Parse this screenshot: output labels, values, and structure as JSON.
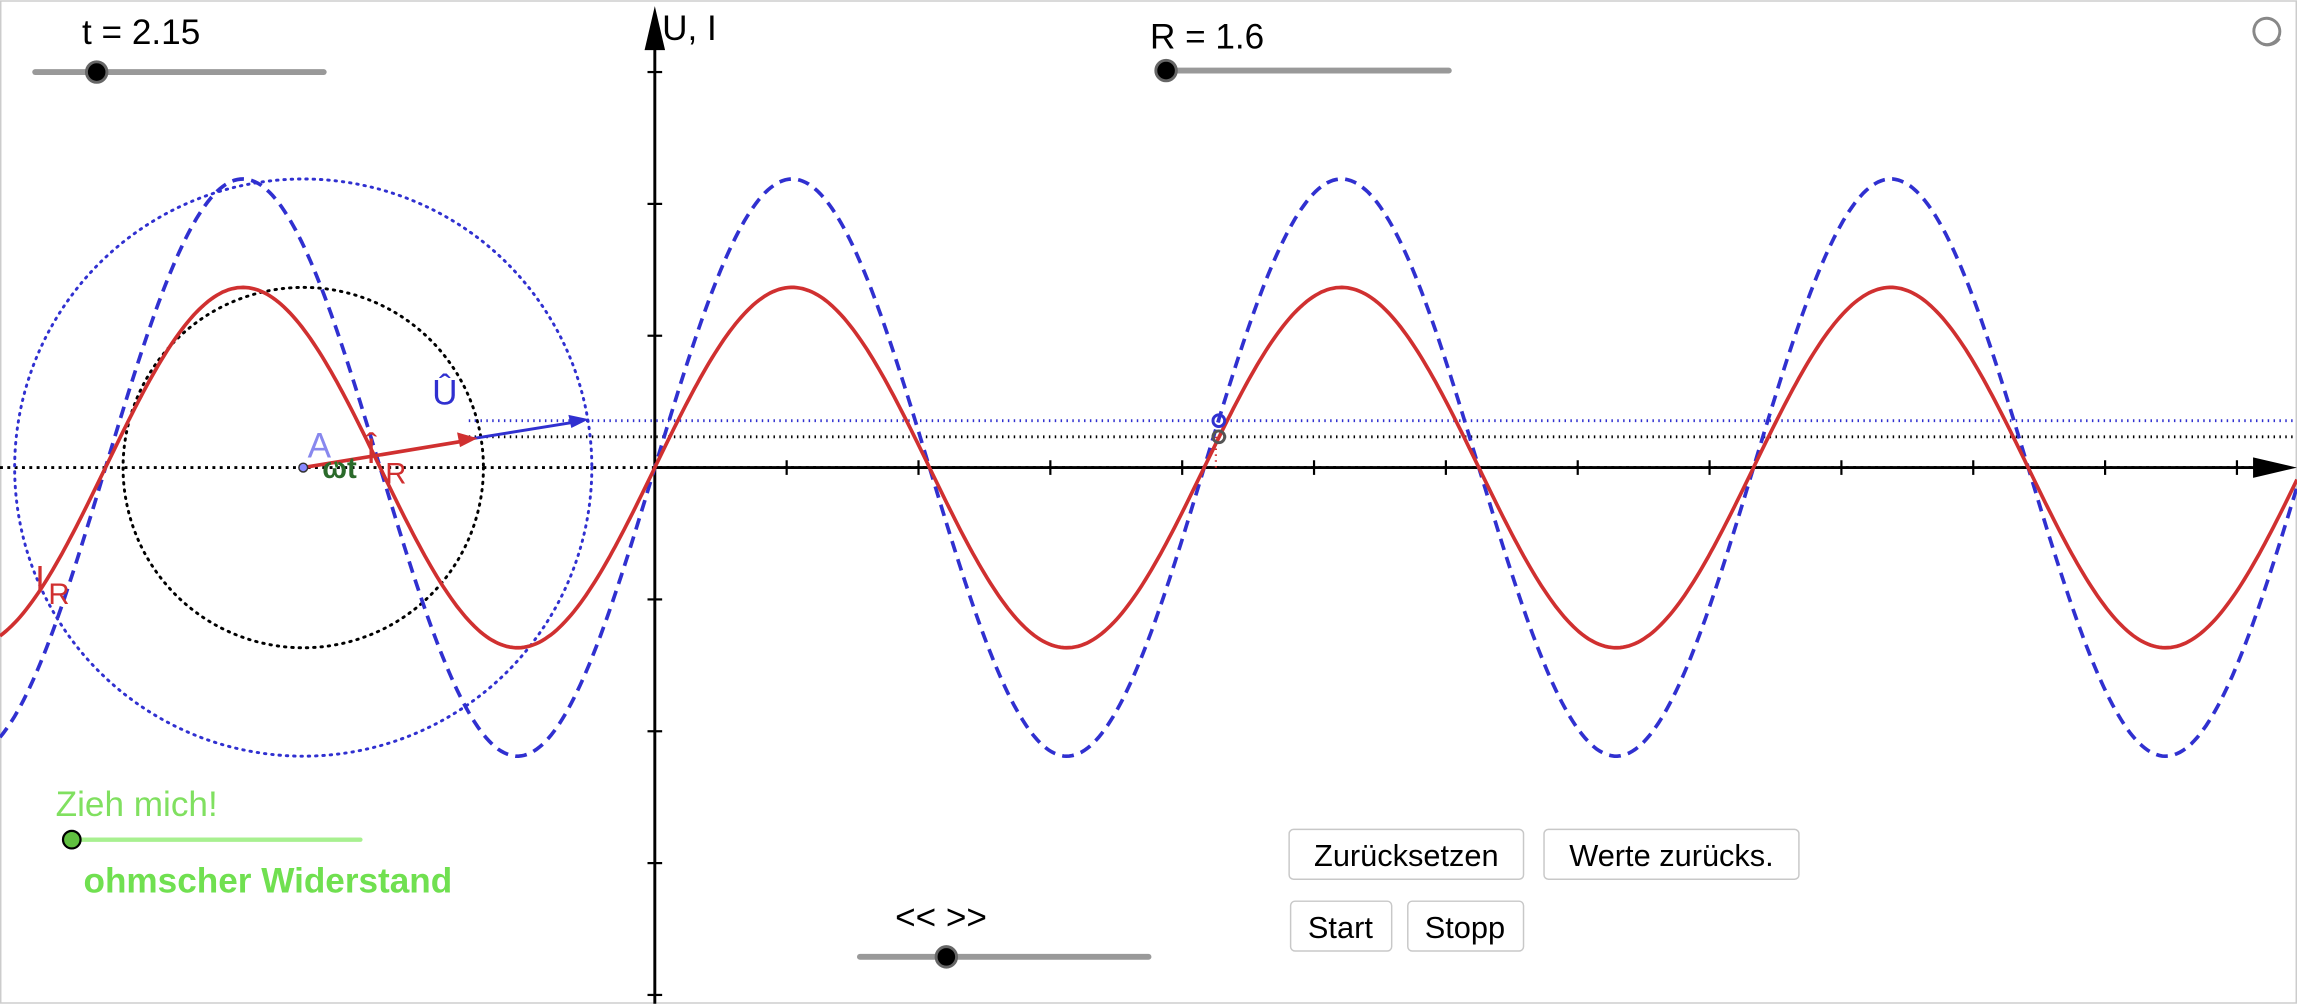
{
  "sliders": [
    {
      "label": "t = 2.15"
    },
    {
      "label": "R = 1.6"
    },
    {
      "label": "Zieh mich!"
    },
    {
      "label": "<< >>"
    }
  ],
  "axis_label": "U, I",
  "labels": {
    "u_hat": "Û",
    "point_a": "A",
    "i_hat": "Î",
    "i_hat_sub": "R",
    "omega_t": "ωt",
    "i_r": "I",
    "i_r_sub": "R"
  },
  "subtitle": "ohmscher Widerstand",
  "buttons": [
    "Zurücksetzen",
    "Werte zurücks.",
    "Start",
    "Stopp"
  ]
}
